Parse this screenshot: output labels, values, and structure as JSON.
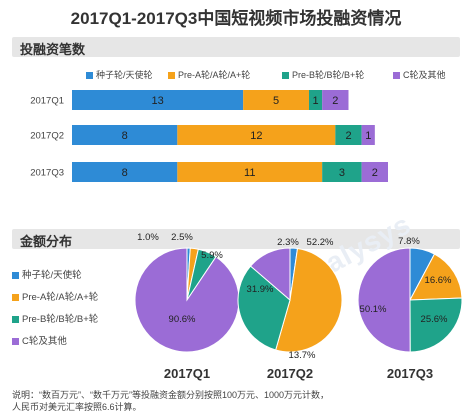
{
  "title": "2017Q1-2017Q3中国短视频市场投融资情况",
  "section_count": "投融资笔数",
  "section_amount": "金额分布",
  "colors": {
    "seed": "#2e8bd6",
    "preA": "#f5a21b",
    "preB": "#1fa38a",
    "c": "#9b6cd6"
  },
  "legend": [
    "种子轮/天使轮",
    "Pre-A轮/A轮/A+轮",
    "Pre-B轮/B轮/B+轮",
    "C轮及其他"
  ],
  "chart_data": [
    {
      "type": "bar",
      "orientation": "horizontal",
      "stacked": true,
      "categories": [
        "2017Q1",
        "2017Q2",
        "2017Q3"
      ],
      "series": [
        {
          "name": "种子轮/天使轮",
          "values": [
            13,
            8,
            8
          ]
        },
        {
          "name": "Pre-A轮/A轮/A+轮",
          "values": [
            5,
            12,
            11
          ]
        },
        {
          "name": "Pre-B轮/B轮/B+轮",
          "values": [
            1,
            2,
            3
          ]
        },
        {
          "name": "C轮及其他",
          "values": [
            2,
            1,
            2
          ]
        }
      ]
    },
    {
      "type": "pie",
      "title": "2017Q1",
      "labels": [
        "种子轮/天使轮",
        "Pre-A轮/A轮/A+轮",
        "Pre-B轮/B轮/B+轮",
        "C轮及其他"
      ],
      "values": [
        1.0,
        2.5,
        5.9,
        90.6
      ],
      "value_labels": [
        "1.0%",
        "2.5%",
        "5.9%",
        "90.6%"
      ]
    },
    {
      "type": "pie",
      "title": "2017Q2",
      "labels": [
        "种子轮/天使轮",
        "Pre-A轮/A轮/A+轮",
        "Pre-B轮/B轮/B+轮",
        "C轮及其他"
      ],
      "values": [
        2.3,
        52.2,
        31.9,
        13.7
      ],
      "value_labels": [
        "2.3%",
        "52.2%",
        "31.9%",
        "13.7%"
      ]
    },
    {
      "type": "pie",
      "title": "2017Q3",
      "labels": [
        "种子轮/天使轮",
        "Pre-A轮/A轮/A+轮",
        "Pre-B轮/B轮/B+轮",
        "C轮及其他"
      ],
      "values": [
        7.8,
        16.6,
        25.6,
        50.1
      ],
      "value_labels": [
        "7.8%",
        "16.6%",
        "25.6%",
        "50.1%"
      ]
    }
  ],
  "watermark": "analysys",
  "footnote_line1": "说明：“数百万元”、“数千万元”等投融资金额分别按照100万元、1000万元计数，",
  "footnote_line2": "人民币对美元汇率按照6.6计算。"
}
